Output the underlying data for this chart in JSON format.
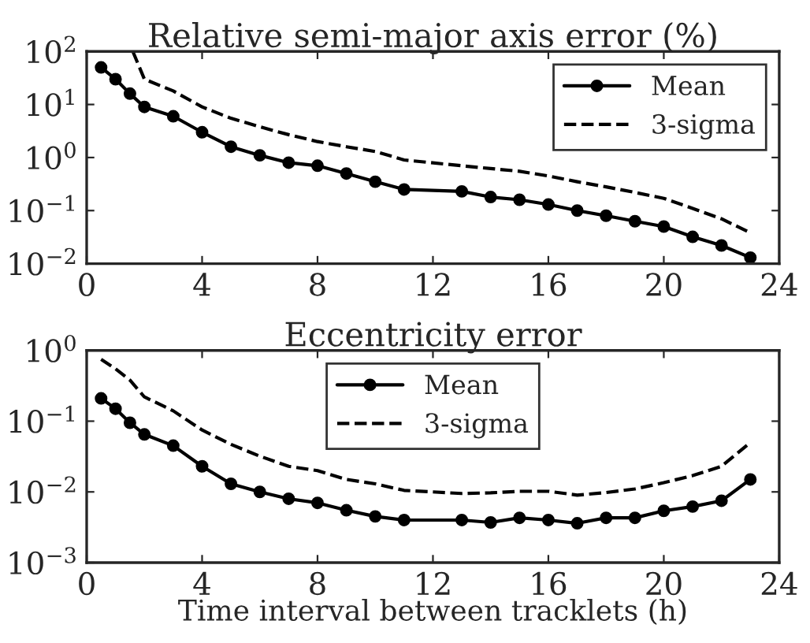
{
  "chart_data": [
    {
      "type": "line",
      "title": "Relative semi-major axis error (%)",
      "log": "y",
      "legend": "top right",
      "grid": false,
      "xlim": [
        0,
        24
      ],
      "xticks": [
        0,
        4,
        8,
        12,
        16,
        20,
        24
      ],
      "ylim": [
        0.01,
        100
      ],
      "yticks": [
        {
          "value": 0.01,
          "label": "10$^{−2}$"
        },
        {
          "value": 0.1,
          "label": "10$^{−1}$"
        },
        {
          "value": 1,
          "label": "10$^{0}$"
        },
        {
          "value": 10,
          "label": "10$^{1}$"
        },
        {
          "value": 100,
          "label": "10$^{2}$"
        }
      ],
      "series": [
        {
          "name": "Mean",
          "color": "#000000",
          "marker": "circle",
          "line_style": "solid",
          "x": [
            0.5,
            1,
            1.5,
            2,
            3,
            4,
            5,
            6,
            7,
            8,
            9,
            10,
            11,
            13,
            14,
            15,
            16,
            17,
            18,
            19,
            20,
            21,
            22,
            23
          ],
          "values": [
            50,
            30,
            16,
            9,
            6,
            3,
            1.6,
            1.1,
            0.8,
            0.7,
            0.5,
            0.35,
            0.25,
            0.23,
            0.18,
            0.16,
            0.13,
            0.1,
            0.08,
            0.063,
            0.05,
            0.032,
            0.022,
            0.013
          ]
        },
        {
          "name": "3-sigma",
          "color": "#000000",
          "marker": "none",
          "line_style": "dashed",
          "x": [
            1.6,
            2,
            3,
            4,
            5,
            6,
            7,
            8,
            9,
            10,
            11,
            13,
            14,
            15,
            16,
            17,
            18,
            19,
            20,
            21,
            22,
            23
          ],
          "values": [
            100,
            30,
            18,
            9,
            5.5,
            3.8,
            2.7,
            2.0,
            1.6,
            1.3,
            0.9,
            0.7,
            0.62,
            0.55,
            0.45,
            0.35,
            0.28,
            0.22,
            0.17,
            0.11,
            0.07,
            0.038
          ]
        }
      ]
    },
    {
      "type": "line",
      "title": "Eccentricity error",
      "xlabel": "Time interval between tracklets (h)",
      "log": "y",
      "legend": "top",
      "grid": false,
      "xlim": [
        0,
        24
      ],
      "xticks": [
        0,
        4,
        8,
        12,
        16,
        20,
        24
      ],
      "ylim": [
        0.001,
        1
      ],
      "yticks": [
        {
          "value": 0.001,
          "label": "10$^{−3}$"
        },
        {
          "value": 0.01,
          "label": "10$^{−2}$"
        },
        {
          "value": 0.1,
          "label": "10$^{−1}$"
        },
        {
          "value": 1,
          "label": "10$^{0}$"
        }
      ],
      "series": [
        {
          "name": "Mean",
          "color": "#000000",
          "marker": "circle",
          "line_style": "solid",
          "x": [
            0.5,
            1,
            1.5,
            2,
            3,
            4,
            5,
            6,
            7,
            8,
            9,
            10,
            11,
            13,
            14,
            15,
            16,
            17,
            18,
            19,
            20,
            21,
            22,
            23
          ],
          "values": [
            0.21,
            0.15,
            0.095,
            0.065,
            0.045,
            0.023,
            0.013,
            0.01,
            0.008,
            0.007,
            0.0055,
            0.0045,
            0.004,
            0.004,
            0.0037,
            0.0043,
            0.004,
            0.0036,
            0.0043,
            0.0043,
            0.0054,
            0.0062,
            0.0075,
            0.015
          ]
        },
        {
          "name": "3-sigma",
          "color": "#000000",
          "marker": "none",
          "line_style": "dashed",
          "x": [
            0.5,
            1,
            1.5,
            2,
            3,
            4,
            5,
            6,
            7,
            8,
            9,
            10,
            11,
            13,
            14,
            15,
            16,
            17,
            18,
            19,
            20,
            21,
            22,
            23
          ],
          "values": [
            0.75,
            0.55,
            0.38,
            0.22,
            0.14,
            0.075,
            0.047,
            0.032,
            0.023,
            0.02,
            0.015,
            0.013,
            0.0105,
            0.0095,
            0.0097,
            0.0102,
            0.0102,
            0.009,
            0.0098,
            0.011,
            0.0135,
            0.017,
            0.023,
            0.05
          ]
        }
      ]
    }
  ]
}
